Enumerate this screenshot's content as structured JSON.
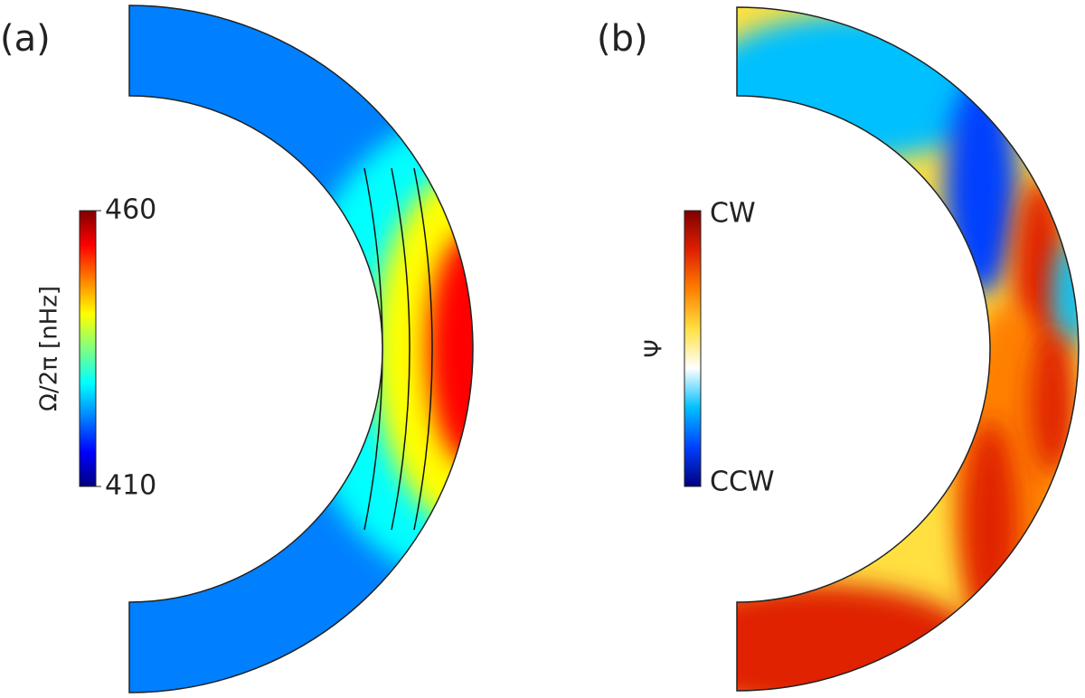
{
  "chart_data": [
    {
      "type": "meridional",
      "panel_label": "(a)",
      "colorbar_label": "Ω/2π  [nHz]",
      "clim": [
        410,
        460
      ],
      "colorbar_ticks": [
        410,
        460
      ],
      "colormap": [
        "#00007f",
        "#0000ff",
        "#0080ff",
        "#00ffff",
        "#80ff80",
        "#ffff00",
        "#ff8000",
        "#ff0000",
        "#7f0000"
      ]
    },
    {
      "type": "meridional",
      "panel_label": "(b)",
      "colorbar_label": "Ψ",
      "colorbar_labels": [
        "CW",
        "CCW"
      ],
      "colormap": [
        "#00007f",
        "#0040ff",
        "#00c0ff",
        "#ffffff",
        "#ffe040",
        "#ff8000",
        "#e02000",
        "#7f0000"
      ]
    }
  ]
}
